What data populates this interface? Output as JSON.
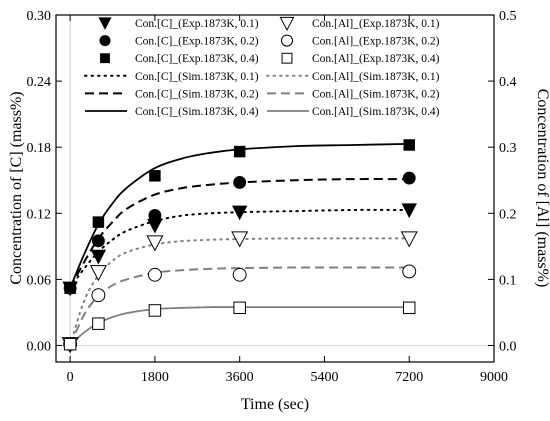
{
  "chart_data": {
    "type": "line",
    "xlabel": "Time (sec)",
    "ylabel_left": "Concentration of [C] (mass%)",
    "ylabel_right": "Concentration of [Al] (mass%)",
    "xlim": [
      -300,
      9000
    ],
    "ylim_left": [
      -0.015,
      0.3
    ],
    "ylim_right": [
      -0.025,
      0.5
    ],
    "xticks": [
      "0",
      "1800",
      "3600",
      "5400",
      "7200",
      "9000"
    ],
    "xtick_values": [
      0,
      1800,
      3600,
      5400,
      7200,
      9000
    ],
    "yticks_left": [
      "0.00",
      "0.06",
      "0.12",
      "0.18",
      "0.24",
      "0.30"
    ],
    "ytick_left_values": [
      0,
      0.06,
      0.12,
      0.18,
      0.24,
      0.3
    ],
    "yticks_right": [
      "0.0",
      "0.1",
      "0.2",
      "0.3",
      "0.4",
      "0.5"
    ],
    "ytick_right_values": [
      0,
      0.1,
      0.2,
      0.3,
      0.4,
      0.5
    ],
    "grid": false,
    "legend_placement": "top",
    "colors": {
      "black": "#000000",
      "gray": "#7f7f7f"
    },
    "experimental_series": [
      {
        "name": "Con.[C]_(Exp.1873K, 0.1)",
        "axis": "left",
        "marker": "triangle-down-filled",
        "x": [
          0,
          600,
          1800,
          3600,
          7200
        ],
        "y": [
          0.052,
          0.081,
          0.109,
          0.121,
          0.123
        ]
      },
      {
        "name": "Con.[C]_(Exp.1873K, 0.2)",
        "axis": "left",
        "marker": "circle-filled",
        "x": [
          0,
          600,
          1800,
          3600,
          7200
        ],
        "y": [
          0.052,
          0.095,
          0.118,
          0.148,
          0.152
        ]
      },
      {
        "name": "Con.[C]_(Exp.1873K, 0.4)",
        "axis": "left",
        "marker": "square-filled",
        "x": [
          0,
          600,
          1800,
          3600,
          7200
        ],
        "y": [
          0.052,
          0.112,
          0.154,
          0.176,
          0.182
        ]
      },
      {
        "name": "Con.[Al]_(Exp.1873K, 0.1)",
        "axis": "right",
        "marker": "triangle-down-open",
        "x": [
          0,
          600,
          1800,
          3600,
          7200
        ],
        "y": [
          0.002,
          0.111,
          0.156,
          0.162,
          0.162
        ]
      },
      {
        "name": "Con.[Al]_(Exp.1873K, 0.2)",
        "axis": "right",
        "marker": "circle-open",
        "x": [
          0,
          600,
          1800,
          3600,
          7200
        ],
        "y": [
          0.002,
          0.076,
          0.107,
          0.107,
          0.112
        ]
      },
      {
        "name": "Con.[Al]_(Exp.1873K, 0.4)",
        "axis": "right",
        "marker": "square-open",
        "x": [
          0,
          600,
          1800,
          3600,
          7200
        ],
        "y": [
          0.002,
          0.033,
          0.053,
          0.057,
          0.057
        ]
      }
    ],
    "simulated_series": [
      {
        "name": "Con.[C]_(Sim.1873K, 0.1)",
        "axis": "left",
        "line": "dotted",
        "color": "#000000",
        "x": [
          0,
          300,
          600,
          900,
          1200,
          1800,
          2400,
          3000,
          3600,
          4800,
          6000,
          7200
        ],
        "y": [
          0.052,
          0.07,
          0.085,
          0.096,
          0.104,
          0.113,
          0.118,
          0.12,
          0.121,
          0.122,
          0.123,
          0.123
        ]
      },
      {
        "name": "Con.[C]_(Sim.1873K, 0.2)",
        "axis": "left",
        "line": "dashed",
        "color": "#000000",
        "x": [
          0,
          300,
          600,
          900,
          1200,
          1800,
          2400,
          3000,
          3600,
          4800,
          6000,
          7200
        ],
        "y": [
          0.052,
          0.076,
          0.097,
          0.112,
          0.124,
          0.137,
          0.143,
          0.146,
          0.148,
          0.15,
          0.151,
          0.151
        ]
      },
      {
        "name": "Con.[C]_(Sim.1873K, 0.4)",
        "axis": "left",
        "line": "solid",
        "color": "#000000",
        "x": [
          0,
          300,
          600,
          900,
          1200,
          1800,
          2400,
          3000,
          3600,
          4800,
          6000,
          7200
        ],
        "y": [
          0.052,
          0.083,
          0.11,
          0.129,
          0.143,
          0.161,
          0.17,
          0.175,
          0.178,
          0.181,
          0.182,
          0.183
        ]
      },
      {
        "name": "Con.[Al]_(Sim.1873K, 0.1)",
        "axis": "right",
        "line": "dotted",
        "color": "#7f7f7f",
        "x": [
          0,
          300,
          600,
          900,
          1200,
          1800,
          2400,
          3000,
          3600,
          4800,
          6000,
          7200
        ],
        "y": [
          0.0,
          0.068,
          0.106,
          0.128,
          0.141,
          0.153,
          0.158,
          0.16,
          0.161,
          0.162,
          0.162,
          0.162
        ]
      },
      {
        "name": "Con.[Al]_(Sim.1873K, 0.2)",
        "axis": "right",
        "line": "dashed",
        "color": "#7f7f7f",
        "x": [
          0,
          300,
          600,
          900,
          1200,
          1800,
          2400,
          3000,
          3600,
          4800,
          6000,
          7200
        ],
        "y": [
          0.0,
          0.047,
          0.075,
          0.091,
          0.1,
          0.11,
          0.114,
          0.116,
          0.117,
          0.118,
          0.118,
          0.118
        ]
      },
      {
        "name": "Con.[Al]_(Sim.1873K, 0.4)",
        "axis": "right",
        "line": "solid",
        "color": "#7f7f7f",
        "x": [
          0,
          300,
          600,
          900,
          1200,
          1800,
          2400,
          3000,
          3600,
          4800,
          6000,
          7200
        ],
        "y": [
          0.0,
          0.02,
          0.034,
          0.043,
          0.049,
          0.055,
          0.057,
          0.058,
          0.058,
          0.058,
          0.058,
          0.058
        ]
      }
    ],
    "legend_order": [
      "Con.[C]_(Exp.1873K, 0.1)",
      "Con.[Al]_(Exp.1873K, 0.1)",
      "Con.[C]_(Exp.1873K, 0.2)",
      "Con.[Al]_(Exp.1873K, 0.2)",
      "Con.[C]_(Exp.1873K, 0.4)",
      "Con.[Al]_(Exp.1873K, 0.4)",
      "Con.[C]_(Sim.1873K, 0.1)",
      "Con.[Al]_(Sim.1873K, 0.1)",
      "Con.[C]_(Sim.1873K, 0.2)",
      "Con.[Al]_(Sim.1873K, 0.2)",
      "Con.[C]_(Sim.1873K, 0.4)",
      "Con.[Al]_(Sim.1873K, 0.4)"
    ]
  }
}
